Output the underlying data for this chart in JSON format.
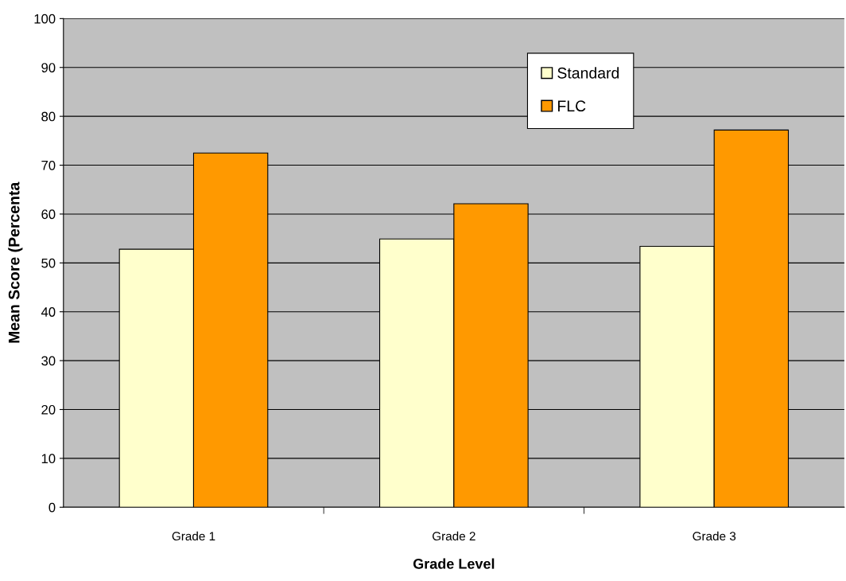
{
  "chart_data": {
    "type": "bar",
    "xlabel": "Grade Level",
    "ylabel": "Mean Score (Percenta",
    "categories": [
      "Grade 1",
      "Grade 2",
      "Grade 3"
    ],
    "series": [
      {
        "name": "Standard",
        "color": "#ffffcc",
        "values": [
          52.8,
          54.9,
          53.4
        ]
      },
      {
        "name": "FLC",
        "color": "#ff9900",
        "values": [
          72.5,
          62.1,
          77.2
        ]
      }
    ],
    "ylim": [
      0,
      100
    ],
    "yticks": [
      0,
      10,
      20,
      30,
      40,
      50,
      60,
      70,
      80,
      90,
      100
    ],
    "grid": "y",
    "legend": "top right"
  }
}
